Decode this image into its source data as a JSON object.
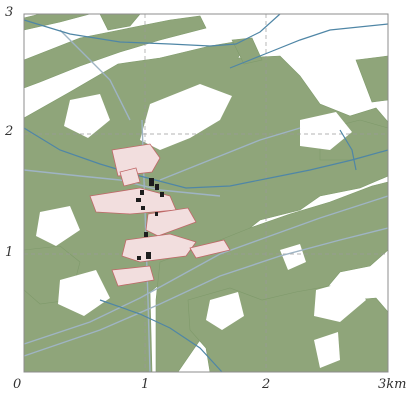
{
  "map": {
    "colors": {
      "land": "#8fa57a",
      "land_stroke": "#7f9a6b",
      "water": "#4f86a6",
      "road": "#9fb4c4",
      "settlement": "#f2dede",
      "settlement_edge": "#c06868",
      "building": "#1d1d1d",
      "grid": "#9a9a9a",
      "frame": "#8c8c8c",
      "background": "#ffffff"
    },
    "axis_x": {
      "labels": [
        "0",
        "1",
        "2",
        "3km"
      ]
    },
    "axis_y": {
      "labels": [
        "1",
        "2",
        "3"
      ]
    }
  }
}
